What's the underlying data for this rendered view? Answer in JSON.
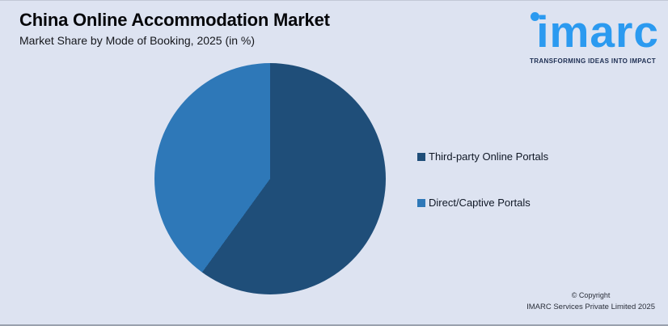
{
  "header": {
    "title": "China Online Accommodation Market",
    "subtitle": "Market Share by Mode of Booking, 2025 (in %)"
  },
  "logo": {
    "wordmark": "imarc",
    "tagline": "TRANSFORMING IDEAS INTO IMPACT",
    "wordmark_color": "#2B9AF0",
    "tagline_color": "#1D2E52"
  },
  "legend": {
    "items": [
      {
        "label": "Third-party Online Portals",
        "color": "#1F4E79"
      },
      {
        "label": "Direct/Captive Portals",
        "color": "#2E78B8"
      }
    ]
  },
  "footer": {
    "copyright_line1": "© Copyright",
    "copyright_line2": "IMARC Services Private Limited 2025"
  },
  "colors": {
    "background": "#DDE3F1",
    "slice_dark": "#1F4E79",
    "slice_light": "#2E78B8",
    "title_text": "#06070a"
  },
  "chart_data": {
    "type": "pie",
    "title": "China Online Accommodation Market",
    "subtitle": "Market Share by Mode of Booking, 2025 (in %)",
    "categories": [
      "Third-party Online Portals",
      "Direct/Captive Portals"
    ],
    "values": [
      60,
      40
    ],
    "colors": [
      "#1F4E79",
      "#2E78B8"
    ],
    "start_angle_deg": 0,
    "direction": "clockwise",
    "legend_position": "right",
    "data_labels_shown": false
  }
}
